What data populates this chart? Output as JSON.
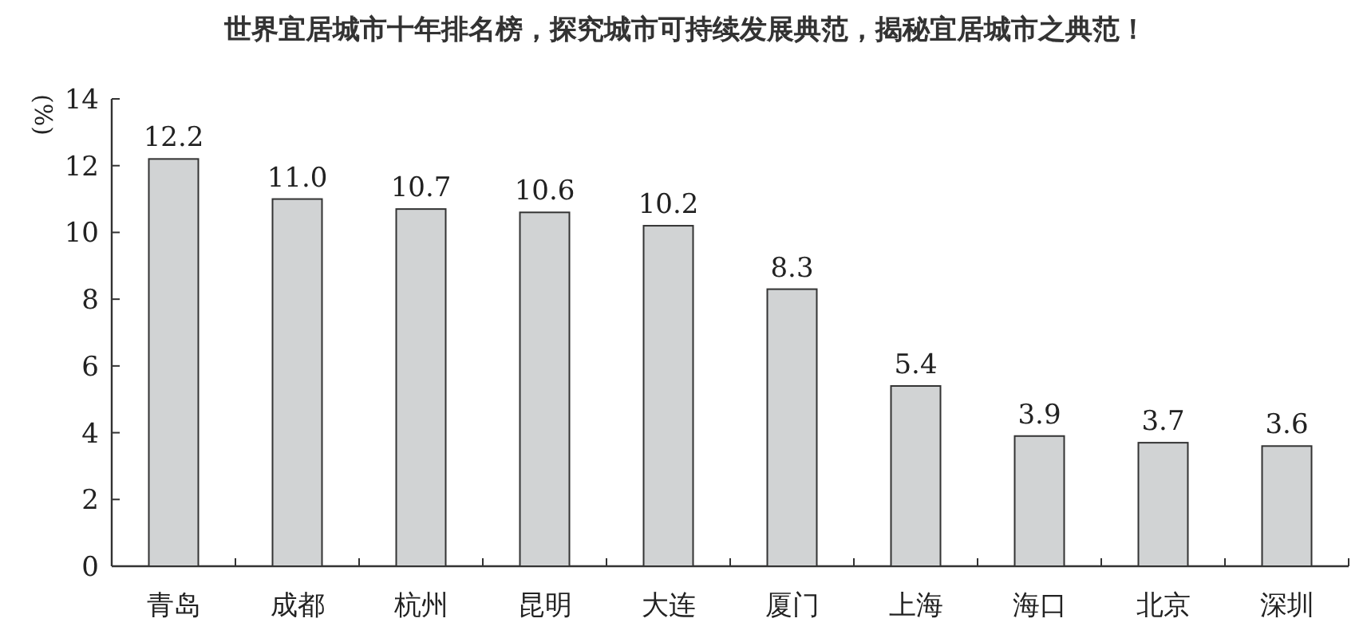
{
  "chart_data": {
    "type": "bar",
    "title": "世界宜居城市十年排名榜，探究城市可持续发展典范，揭秘宜居城市之典范！",
    "ylabel": "(%)",
    "categories": [
      "青岛",
      "成都",
      "杭州",
      "昆明",
      "大连",
      "厦门",
      "上海",
      "海口",
      "北京",
      "深圳"
    ],
    "values": [
      12.2,
      11.0,
      10.7,
      10.6,
      10.2,
      8.3,
      5.4,
      3.9,
      3.7,
      3.6
    ],
    "value_labels": [
      "12.2",
      "11.0",
      "10.7",
      "10.6",
      "10.2",
      "8.3",
      "5.4",
      "3.9",
      "3.7",
      "3.6"
    ],
    "color": "#d1d3d4",
    "ylim": [
      0,
      14
    ],
    "yticks": [
      0,
      2,
      4,
      6,
      8,
      10,
      12,
      14
    ],
    "grid": false
  }
}
